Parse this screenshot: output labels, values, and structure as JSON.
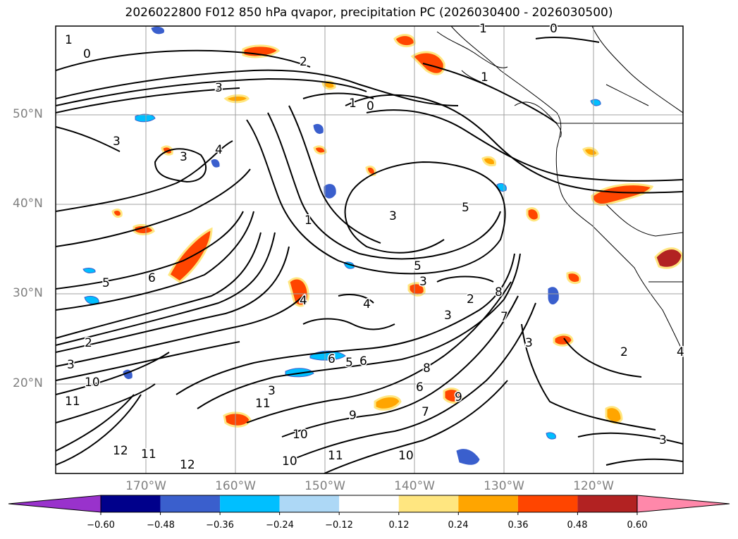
{
  "title": "2026022800 F012 850 hPa qvapor, precipitation PC (2026030400 - 2026030500)",
  "map": {
    "lat_labels": [
      "50°N",
      "40°N",
      "30°N",
      "20°N"
    ],
    "lon_labels": [
      "170°W",
      "160°W",
      "150°W",
      "140°W",
      "130°W",
      "120°W"
    ],
    "background": "#ffffff",
    "gridline_color": "#a0a0a0",
    "contour_color": "#000000",
    "contour_labels": [
      {
        "text": "1"
      },
      {
        "text": "0"
      },
      {
        "text": "1"
      },
      {
        "text": "0"
      },
      {
        "text": "2"
      },
      {
        "text": "3"
      },
      {
        "text": "1"
      },
      {
        "text": "0"
      },
      {
        "text": "3"
      },
      {
        "text": "3"
      },
      {
        "text": "4"
      },
      {
        "text": "5"
      },
      {
        "text": "6"
      },
      {
        "text": "3"
      },
      {
        "text": "5"
      },
      {
        "text": "4"
      },
      {
        "text": "2"
      },
      {
        "text": "2"
      },
      {
        "text": "3"
      },
      {
        "text": "3"
      },
      {
        "text": "10"
      },
      {
        "text": "11"
      },
      {
        "text": "11"
      },
      {
        "text": "11"
      },
      {
        "text": "12"
      },
      {
        "text": "12"
      },
      {
        "text": "10"
      },
      {
        "text": "11"
      },
      {
        "text": "10"
      },
      {
        "text": "10"
      },
      {
        "text": "9"
      },
      {
        "text": "6"
      },
      {
        "text": "5"
      },
      {
        "text": "6"
      },
      {
        "text": "3"
      },
      {
        "text": "3"
      },
      {
        "text": "4"
      },
      {
        "text": "2"
      },
      {
        "text": "3"
      },
      {
        "text": "4"
      },
      {
        "text": "1"
      },
      {
        "text": "1"
      },
      {
        "text": "5"
      },
      {
        "text": "6"
      },
      {
        "text": "7"
      },
      {
        "text": "8"
      },
      {
        "text": "9"
      },
      {
        "text": "7"
      },
      {
        "text": "8"
      },
      {
        "text": "3"
      }
    ]
  },
  "colorbar": {
    "ticks": [
      "−0.60",
      "−0.48",
      "−0.36",
      "−0.24",
      "−0.12",
      "0.12",
      "0.24",
      "0.36",
      "0.48",
      "0.60"
    ],
    "colors": [
      "#9932cc",
      "#00008b",
      "#3a5fcd",
      "#00bfff",
      "#add8f6",
      "#ffffff",
      "#ffe680",
      "#ffa500",
      "#ff4500",
      "#b22222",
      "#ff88aa"
    ],
    "extend": "both"
  },
  "precip_colors": {
    "positive_light": "#ffe680",
    "positive_mid": "#ffa500",
    "positive_strong": "#ff4500",
    "positive_max": "#b22222",
    "negative_light": "#add8f6",
    "negative_mid": "#00bfff",
    "negative_strong": "#3a5fcd"
  }
}
